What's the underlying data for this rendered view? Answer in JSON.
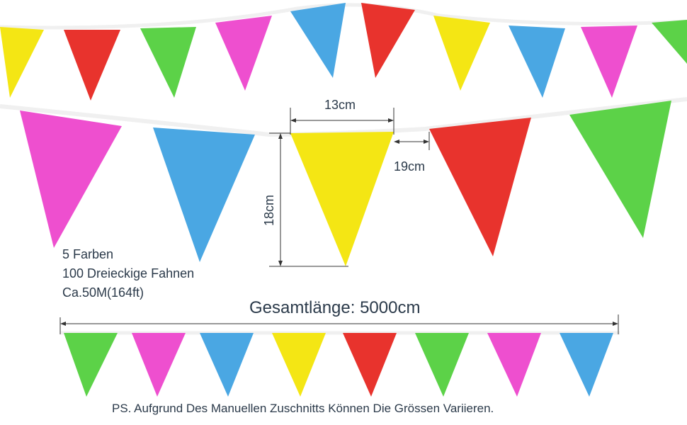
{
  "colors": {
    "yellow": "#f4e614",
    "red": "#e8332d",
    "green": "#5cd248",
    "magenta": "#ee4fcf",
    "blue": "#4aa7e3",
    "string": "#f2f2f2",
    "dimension_line": "#333333",
    "text": "#2b3a4a"
  },
  "dimensions": {
    "width_label": "13cm",
    "gap_label": "19cm",
    "height_label": "18cm"
  },
  "info": {
    "line1": "5 Farben",
    "line2": "100 Dreieckige Fahnen",
    "line3": "Ca.50M(164ft)"
  },
  "total_length_label": "Gesamtlänge: 5000cm",
  "note": "PS. Aufgrund Des Manuellen Zuschnitts Können Die Grössen Variieren."
}
